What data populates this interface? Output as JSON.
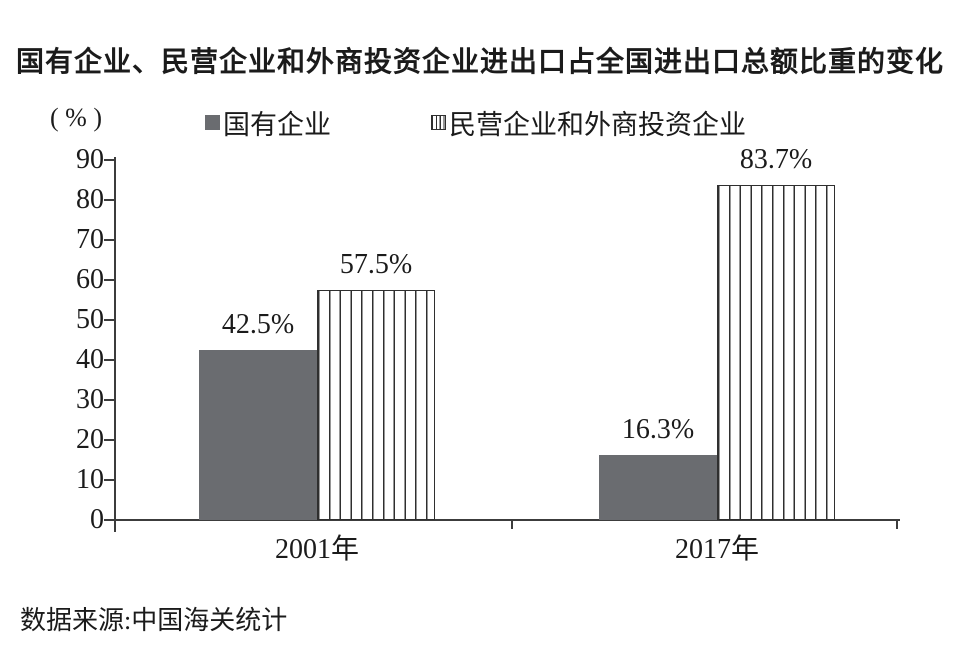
{
  "page": {
    "title": "国有企业、民营企业和外商投资企业进出口占全国进出口总额比重的变化",
    "unit_label": "( % )",
    "source": "数据来源:中国海关统计"
  },
  "legend": {
    "items": [
      {
        "label": "国有企业",
        "swatch": "solid-gray-square"
      },
      {
        "label": "民营企业和外商投资企业",
        "swatch": "vertical-striped-square"
      }
    ]
  },
  "colors": {
    "solid_bar": "#6a6c70",
    "stripe_line": "#2f2f2f",
    "axis": "#3c3c3c",
    "text": "#1b1b1b"
  },
  "chart_data": {
    "type": "bar",
    "title": "国有企业、民营企业和外商投资企业进出口占全国进出口总额比重的变化",
    "unit": "%",
    "categories": [
      "2001年",
      "2017年"
    ],
    "series": [
      {
        "name": "国有企业",
        "style": "solid",
        "values": [
          42.5,
          16.3
        ],
        "labels": [
          "42.5%",
          "16.3%"
        ]
      },
      {
        "name": "民营企业和外商投资企业",
        "style": "striped",
        "values": [
          57.5,
          83.7
        ],
        "labels": [
          "57.5%",
          "83.7%"
        ]
      }
    ],
    "ylim": [
      0,
      90
    ],
    "yticks": [
      0,
      10,
      20,
      30,
      40,
      50,
      60,
      70,
      80,
      90
    ],
    "grid": false,
    "legend_position": "top",
    "source": "数据来源:中国海关统计"
  }
}
